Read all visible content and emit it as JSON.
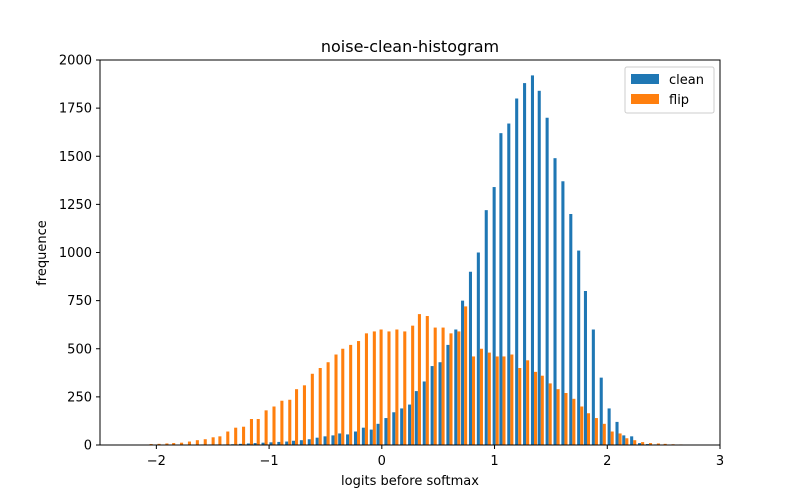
{
  "chart_data": {
    "type": "bar",
    "title": "noise-clean-histogram",
    "xlabel": "logits before softmax",
    "ylabel": "frequence",
    "xlim": [
      -2.5,
      3.0
    ],
    "ylim": [
      0,
      2000
    ],
    "x_ticks": [
      "−2",
      "−1",
      "0",
      "1",
      "2",
      "3"
    ],
    "y_ticks": [
      "0",
      "250",
      "500",
      "750",
      "1000",
      "1250",
      "1500",
      "1750",
      "2000"
    ],
    "grid": false,
    "legend_position": "top-right",
    "bin_width": 0.068,
    "series": [
      {
        "name": "clean",
        "color": "#1f77b4",
        "x": [
          -2.06,
          -1.99,
          -1.92,
          -1.86,
          -1.79,
          -1.72,
          -1.65,
          -1.58,
          -1.51,
          -1.45,
          -1.38,
          -1.31,
          -1.24,
          -1.17,
          -1.11,
          -1.04,
          -0.97,
          -0.9,
          -0.83,
          -0.77,
          -0.7,
          -0.63,
          -0.56,
          -0.49,
          -0.42,
          -0.36,
          -0.29,
          -0.22,
          -0.15,
          -0.08,
          -0.02,
          0.05,
          0.12,
          0.19,
          0.26,
          0.32,
          0.39,
          0.46,
          0.53,
          0.6,
          0.67,
          0.73,
          0.8,
          0.87,
          0.94,
          1.01,
          1.07,
          1.14,
          1.21,
          1.28,
          1.35,
          1.41,
          1.48,
          1.55,
          1.62,
          1.69,
          1.76,
          1.82,
          1.89,
          1.96,
          2.03,
          2.1,
          2.16,
          2.23,
          2.3,
          2.37,
          2.44,
          2.5,
          2.57,
          2.64
        ],
        "values": [
          1,
          1,
          1,
          1,
          1,
          2,
          2,
          3,
          3,
          3,
          3,
          4,
          6,
          8,
          10,
          12,
          14,
          16,
          18,
          22,
          25,
          30,
          38,
          45,
          50,
          60,
          55,
          70,
          90,
          80,
          110,
          140,
          170,
          190,
          210,
          280,
          330,
          410,
          430,
          520,
          600,
          750,
          900,
          1000,
          1220,
          1340,
          1620,
          1670,
          1800,
          1880,
          1920,
          1840,
          1700,
          1490,
          1370,
          1200,
          1010,
          800,
          600,
          350,
          190,
          120,
          50,
          45,
          10,
          5,
          3,
          2,
          1,
          1
        ]
      },
      {
        "name": "flip",
        "color": "#ff7f0e",
        "x": [
          -2.06,
          -1.99,
          -1.92,
          -1.86,
          -1.79,
          -1.72,
          -1.65,
          -1.58,
          -1.51,
          -1.45,
          -1.38,
          -1.31,
          -1.24,
          -1.17,
          -1.11,
          -1.04,
          -0.97,
          -0.9,
          -0.83,
          -0.77,
          -0.7,
          -0.63,
          -0.56,
          -0.49,
          -0.42,
          -0.36,
          -0.29,
          -0.22,
          -0.15,
          -0.08,
          -0.02,
          0.05,
          0.12,
          0.19,
          0.26,
          0.32,
          0.39,
          0.46,
          0.53,
          0.6,
          0.67,
          0.73,
          0.8,
          0.87,
          0.94,
          1.01,
          1.07,
          1.14,
          1.21,
          1.28,
          1.35,
          1.41,
          1.48,
          1.55,
          1.62,
          1.69,
          1.76,
          1.82,
          1.89,
          1.96,
          2.03,
          2.1,
          2.16,
          2.23,
          2.3,
          2.37,
          2.44,
          2.5,
          2.57,
          2.64
        ],
        "values": [
          5,
          6,
          8,
          10,
          12,
          18,
          25,
          30,
          40,
          45,
          70,
          90,
          95,
          135,
          135,
          180,
          200,
          230,
          235,
          290,
          310,
          370,
          400,
          430,
          470,
          500,
          520,
          540,
          580,
          590,
          600,
          590,
          600,
          590,
          620,
          680,
          670,
          610,
          610,
          580,
          590,
          720,
          460,
          500,
          480,
          460,
          460,
          470,
          400,
          440,
          380,
          360,
          320,
          290,
          270,
          240,
          200,
          165,
          140,
          110,
          70,
          60,
          35,
          25,
          15,
          10,
          8,
          6,
          4,
          3
        ]
      }
    ]
  }
}
